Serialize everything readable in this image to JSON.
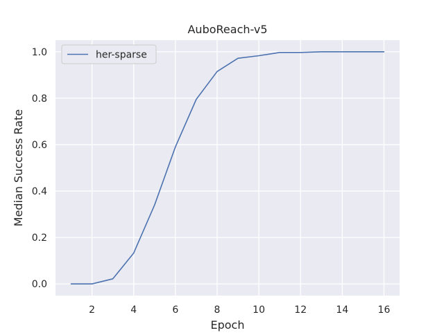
{
  "chart_data": {
    "type": "line",
    "title": "AuboReach-v5",
    "xlabel": "Epoch",
    "ylabel": "Median Success Rate",
    "xlim": [
      0.25,
      16.75
    ],
    "ylim": [
      -0.05,
      1.05
    ],
    "xticks": [
      2,
      4,
      6,
      8,
      10,
      12,
      14,
      16
    ],
    "yticks": [
      0.0,
      0.2,
      0.4,
      0.6,
      0.8,
      1.0
    ],
    "grid": true,
    "legend_position": "top-left",
    "background": "#eaeaf2",
    "grid_color": "#ffffff",
    "series": [
      {
        "name": "her-sparse",
        "color": "#4c72b0",
        "x": [
          1,
          2,
          3,
          4,
          5,
          6,
          7,
          8,
          9,
          10,
          11,
          12,
          13,
          14,
          15,
          16
        ],
        "y": [
          0.0,
          0.0,
          0.022,
          0.133,
          0.34,
          0.59,
          0.795,
          0.915,
          0.972,
          0.983,
          0.997,
          0.997,
          1.0,
          1.0,
          1.0,
          1.0
        ]
      }
    ]
  }
}
